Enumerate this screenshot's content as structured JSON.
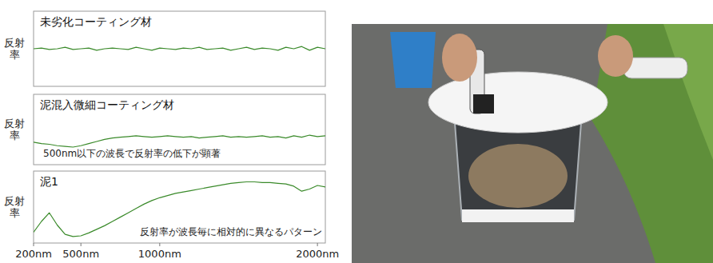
{
  "chart_data": [
    {
      "type": "line",
      "title": "未劣化コーティング材",
      "y_label": "反射率",
      "color": "#3a8a2a",
      "grid": false,
      "tick_labels": false,
      "xlim": [
        200,
        2050
      ],
      "ylim": [
        0,
        100
      ],
      "x": [
        200,
        250,
        300,
        350,
        400,
        450,
        500,
        550,
        600,
        650,
        700,
        750,
        800,
        850,
        900,
        950,
        1000,
        1050,
        1100,
        1150,
        1200,
        1250,
        1300,
        1350,
        1400,
        1450,
        1500,
        1550,
        1600,
        1650,
        1700,
        1750,
        1800,
        1850,
        1900,
        1950,
        2000,
        2050
      ],
      "values": [
        50,
        51,
        49,
        50,
        52,
        49,
        50,
        51,
        48,
        50,
        51,
        50,
        49,
        52,
        50,
        48,
        51,
        50,
        49,
        51,
        50,
        52,
        49,
        50,
        51,
        48,
        50,
        52,
        49,
        51,
        50,
        48,
        52,
        50,
        53,
        48,
        52,
        50
      ]
    },
    {
      "type": "line",
      "title": "泥混入微細コーティング材",
      "y_label": "反射率",
      "annotation": "500nm以下の波長で反射率の低下が顕著",
      "color": "#3a8a2a",
      "grid": false,
      "tick_labels": false,
      "xlim": [
        200,
        2050
      ],
      "ylim": [
        0,
        100
      ],
      "x": [
        200,
        250,
        300,
        350,
        400,
        450,
        500,
        550,
        600,
        650,
        700,
        750,
        800,
        850,
        900,
        950,
        1000,
        1050,
        1100,
        1150,
        1200,
        1250,
        1300,
        1350,
        1400,
        1450,
        1500,
        1550,
        1600,
        1650,
        1700,
        1750,
        1800,
        1850,
        1900,
        1950,
        2000,
        2050
      ],
      "values": [
        32,
        30,
        29,
        27,
        26,
        25,
        27,
        30,
        33,
        36,
        38,
        39,
        40,
        41,
        40,
        39,
        40,
        41,
        40,
        39,
        40,
        38,
        39,
        40,
        41,
        39,
        40,
        39,
        40,
        41,
        39,
        40,
        38,
        41,
        39,
        42,
        40,
        41
      ]
    },
    {
      "type": "line",
      "title": "泥1",
      "y_label": "反射率",
      "annotation": "反射率が波長毎に相対的に異なるパターン",
      "color": "#3a8a2a",
      "grid": false,
      "tick_labels": "x",
      "xlim": [
        200,
        2050
      ],
      "ylim": [
        0,
        100
      ],
      "xticks": [
        {
          "value": 200,
          "label": "200nm"
        },
        {
          "value": 500,
          "label": "500nm"
        },
        {
          "value": 1000,
          "label": "1000nm"
        },
        {
          "value": 2000,
          "label": "2000nm"
        }
      ],
      "x": [
        200,
        250,
        300,
        350,
        400,
        450,
        500,
        550,
        600,
        650,
        700,
        750,
        800,
        850,
        900,
        950,
        1000,
        1050,
        1100,
        1150,
        1200,
        1250,
        1300,
        1350,
        1400,
        1450,
        1500,
        1550,
        1600,
        1650,
        1700,
        1750,
        1800,
        1850,
        1900,
        1950,
        2000,
        2050
      ],
      "values": [
        15,
        30,
        42,
        25,
        12,
        9,
        10,
        14,
        19,
        24,
        30,
        36,
        42,
        48,
        54,
        59,
        63,
        66,
        69,
        71,
        73,
        75,
        77,
        79,
        81,
        83,
        84,
        85,
        85,
        84,
        84,
        83,
        82,
        79,
        72,
        75,
        80,
        78
      ]
    }
  ]
}
